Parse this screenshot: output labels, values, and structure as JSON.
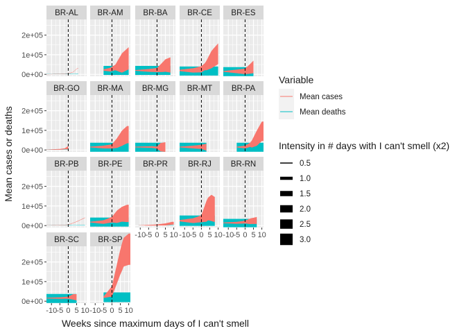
{
  "chart_data": {
    "type": "area",
    "facet_var": "state",
    "xlabel": "Weeks since maximum days of I can't smell",
    "ylabel": "Mean cases or deaths",
    "xlim": [
      -13,
      11
    ],
    "ylim": [
      -10000,
      280000
    ],
    "x_ticks": [
      -10,
      -5,
      0,
      5,
      10
    ],
    "x_tick_labels": [
      "-10",
      "-5",
      "0",
      "5",
      "10"
    ],
    "y_ticks": [
      0,
      100000,
      200000
    ],
    "y_tick_labels": [
      "0e+00",
      "1e+05",
      "2e+05"
    ],
    "vline_x": 0,
    "grid": true,
    "panel_background": "#ebebeb",
    "strip_background": "#d9d9d9",
    "legend_position": "right",
    "legend": {
      "variable_title": "Variable",
      "variable_entries": [
        {
          "label": "Mean cases",
          "color": "#F8766D"
        },
        {
          "label": "Mean deaths",
          "color": "#00BFC4"
        }
      ],
      "intensity_title": "Intensity in # days with I can't smell (x2)",
      "intensity_entries": [
        "0.5",
        "1.0",
        "1.5",
        "2.0",
        "2.5",
        "3.0"
      ]
    },
    "series_colors": {
      "cases": "#F8766D",
      "deaths": "#00BFC4"
    },
    "panels": [
      {
        "label": "BR-AL",
        "xr": [
          -13,
          6
        ],
        "cases": [
          [
            -13,
            0
          ],
          [
            -5,
            2000
          ],
          [
            0,
            4000
          ],
          [
            3,
            12000
          ],
          [
            5,
            28000
          ],
          [
            6,
            32000
          ]
        ],
        "deaths": [
          [
            -13,
            2000
          ],
          [
            -5,
            2000
          ],
          [
            0,
            2000
          ],
          [
            3,
            3000
          ],
          [
            6,
            3000
          ]
        ],
        "c_w": [
          [
            -13,
            0.2
          ],
          [
            0,
            0.5
          ],
          [
            6,
            0.5
          ]
        ],
        "d_w": [
          [
            -13,
            0.3
          ],
          [
            6,
            0.5
          ]
        ]
      },
      {
        "label": "BR-AM",
        "xr": [
          -5,
          10
        ],
        "cases": [
          [
            -5,
            22000
          ],
          [
            -1,
            24000
          ],
          [
            2,
            35000
          ],
          [
            5,
            52000
          ],
          [
            8,
            70000
          ],
          [
            10,
            82000
          ]
        ],
        "deaths": [
          [
            -5,
            20000
          ],
          [
            5,
            20000
          ],
          [
            10,
            20000
          ]
        ],
        "c_w": [
          [
            -5,
            2
          ],
          [
            2,
            8
          ],
          [
            6,
            28
          ],
          [
            10,
            32
          ]
        ],
        "d_w": [
          [
            -5,
            13
          ],
          [
            10,
            13
          ]
        ]
      },
      {
        "label": "BR-BA",
        "xr": [
          -13,
          8
        ],
        "cases": [
          [
            -13,
            20000
          ],
          [
            -5,
            20000
          ],
          [
            0,
            22000
          ],
          [
            3,
            35000
          ],
          [
            5,
            45000
          ],
          [
            8,
            48000
          ]
        ],
        "deaths": [
          [
            -13,
            20000
          ],
          [
            8,
            20000
          ]
        ],
        "c_w": [
          [
            -13,
            1
          ],
          [
            0,
            6
          ],
          [
            5,
            18
          ],
          [
            8,
            22
          ]
        ],
        "d_w": [
          [
            -13,
            13
          ],
          [
            8,
            13
          ]
        ]
      },
      {
        "label": "BR-CE",
        "xr": [
          -13,
          10
        ],
        "cases": [
          [
            -13,
            20000
          ],
          [
            -5,
            20000
          ],
          [
            0,
            26000
          ],
          [
            3,
            45000
          ],
          [
            6,
            75000
          ],
          [
            10,
            105000
          ]
        ],
        "deaths": [
          [
            -13,
            17000
          ],
          [
            10,
            17000
          ]
        ],
        "c_w": [
          [
            -13,
            2
          ],
          [
            2,
            10
          ],
          [
            6,
            25
          ],
          [
            10,
            30
          ]
        ],
        "d_w": [
          [
            -13,
            13
          ],
          [
            10,
            13
          ]
        ]
      },
      {
        "label": "BR-ES",
        "xr": [
          -13,
          5
        ],
        "cases": [
          [
            -13,
            15000
          ],
          [
            -5,
            15000
          ],
          [
            0,
            15000
          ],
          [
            3,
            28000
          ],
          [
            5,
            38000
          ]
        ],
        "deaths": [
          [
            -13,
            14000
          ],
          [
            5,
            14000
          ]
        ],
        "c_w": [
          [
            -13,
            1
          ],
          [
            0,
            8
          ],
          [
            5,
            18
          ]
        ],
        "d_w": [
          [
            -13,
            13
          ],
          [
            5,
            13
          ]
        ]
      },
      {
        "label": "BR-GO",
        "xr": [
          -13,
          0
        ],
        "cases": [
          [
            -13,
            2000
          ],
          [
            -5,
            3000
          ],
          [
            -2,
            6000
          ],
          [
            0,
            12000
          ]
        ],
        "deaths": [
          [
            -13,
            1500
          ],
          [
            0,
            2500
          ]
        ],
        "c_w": [
          [
            -13,
            0.3
          ],
          [
            -2,
            1.5
          ],
          [
            0,
            5
          ]
        ],
        "d_w": [
          [
            -13,
            0.3
          ],
          [
            0,
            0.5
          ]
        ]
      },
      {
        "label": "BR-MA",
        "xr": [
          -13,
          10
        ],
        "cases": [
          [
            -13,
            15000
          ],
          [
            -5,
            15000
          ],
          [
            0,
            18000
          ],
          [
            3,
            35000
          ],
          [
            6,
            60000
          ],
          [
            9,
            78000
          ]
        ],
        "deaths": [
          [
            -13,
            14000
          ],
          [
            9,
            14000
          ]
        ],
        "c_w": [
          [
            -13,
            1
          ],
          [
            0,
            6
          ],
          [
            6,
            22
          ],
          [
            9,
            25
          ]
        ],
        "d_w": [
          [
            -13,
            13
          ],
          [
            9,
            13
          ]
        ]
      },
      {
        "label": "BR-MG",
        "xr": [
          -13,
          5
        ],
        "cases": [
          [
            -13,
            15000
          ],
          [
            -3,
            15000
          ],
          [
            0,
            12000
          ],
          [
            2,
            14000
          ],
          [
            5,
            15000
          ]
        ],
        "deaths": [
          [
            -13,
            14000
          ],
          [
            5,
            14000
          ]
        ],
        "c_w": [
          [
            -13,
            1
          ],
          [
            0,
            3
          ],
          [
            2,
            12
          ],
          [
            5,
            14
          ]
        ],
        "d_w": [
          [
            -13,
            13
          ],
          [
            5,
            13
          ]
        ]
      },
      {
        "label": "BR-MT",
        "xr": [
          -13,
          3
        ],
        "cases": [
          [
            -13,
            15000
          ],
          [
            -3,
            15000
          ],
          [
            0,
            16000
          ],
          [
            3,
            14000
          ]
        ],
        "deaths": [
          [
            -13,
            14000
          ],
          [
            3,
            14000
          ]
        ],
        "c_w": [
          [
            -13,
            1
          ],
          [
            0,
            6
          ],
          [
            3,
            10
          ]
        ],
        "d_w": [
          [
            -13,
            13
          ],
          [
            3,
            13
          ]
        ]
      },
      {
        "label": "BR-PA",
        "xr": [
          -5,
          11
        ],
        "cases": [
          [
            -5,
            15000
          ],
          [
            0,
            15000
          ],
          [
            4,
            30000
          ],
          [
            7,
            60000
          ],
          [
            10,
            95000
          ]
        ],
        "deaths": [
          [
            -5,
            14000
          ],
          [
            10,
            14000
          ]
        ],
        "c_w": [
          [
            -5,
            1
          ],
          [
            3,
            6
          ],
          [
            7,
            22
          ],
          [
            10,
            28
          ]
        ],
        "d_w": [
          [
            -5,
            13
          ],
          [
            10,
            13
          ]
        ]
      },
      {
        "label": "BR-PB",
        "xr": [
          -13,
          10
        ],
        "cases": [
          [
            -13,
            2000
          ],
          [
            -5,
            2000
          ],
          [
            0,
            4000
          ],
          [
            5,
            20000
          ],
          [
            8,
            32000
          ],
          [
            10,
            40000
          ]
        ],
        "deaths": [
          [
            -13,
            1500
          ],
          [
            10,
            3000
          ]
        ],
        "c_w": [
          [
            -13,
            0.3
          ],
          [
            0,
            0.5
          ],
          [
            10,
            0.6
          ]
        ],
        "d_w": [
          [
            -13,
            0.3
          ],
          [
            10,
            0.5
          ]
        ]
      },
      {
        "label": "BR-PE",
        "xr": [
          -13,
          10
        ],
        "cases": [
          [
            -13,
            18000
          ],
          [
            -5,
            18000
          ],
          [
            0,
            30000
          ],
          [
            3,
            45000
          ],
          [
            6,
            58000
          ],
          [
            9,
            62000
          ]
        ],
        "deaths": [
          [
            -13,
            18000
          ],
          [
            9,
            18000
          ]
        ],
        "c_w": [
          [
            -13,
            1
          ],
          [
            0,
            8
          ],
          [
            3,
            18
          ],
          [
            9,
            25
          ]
        ],
        "d_w": [
          [
            -13,
            13
          ],
          [
            9,
            13
          ]
        ]
      },
      {
        "label": "BR-PR",
        "xr": [
          -11,
          10
        ],
        "cases": [
          [
            -11,
            1000
          ],
          [
            -5,
            2000
          ],
          [
            0,
            3000
          ],
          [
            5,
            6000
          ],
          [
            9,
            12000
          ]
        ],
        "deaths": [
          [
            -11,
            1000
          ],
          [
            9,
            1500
          ]
        ],
        "c_w": [
          [
            -11,
            0.3
          ],
          [
            0,
            1.5
          ],
          [
            5,
            3
          ],
          [
            9,
            4
          ]
        ],
        "d_w": [
          [
            -11,
            0.3
          ],
          [
            9,
            0.4
          ]
        ]
      },
      {
        "label": "BR-RJ",
        "xr": [
          -13,
          8
        ],
        "cases": [
          [
            -13,
            25000
          ],
          [
            -5,
            25000
          ],
          [
            0,
            35000
          ],
          [
            2,
            60000
          ],
          [
            4,
            85000
          ],
          [
            6,
            90000
          ],
          [
            8,
            82000
          ]
        ],
        "deaths": [
          [
            -13,
            25000
          ],
          [
            8,
            25000
          ]
        ],
        "c_w": [
          [
            -13,
            2
          ],
          [
            0,
            10
          ],
          [
            3,
            30
          ],
          [
            6,
            38
          ],
          [
            8,
            36
          ]
        ],
        "d_w": [
          [
            -13,
            15
          ],
          [
            8,
            15
          ]
        ]
      },
      {
        "label": "BR-RN",
        "xr": [
          -13,
          7
        ],
        "cases": [
          [
            -13,
            14000
          ],
          [
            -5,
            14000
          ],
          [
            0,
            18000
          ],
          [
            3,
            22000
          ],
          [
            7,
            26000
          ]
        ],
        "deaths": [
          [
            -13,
            13000
          ],
          [
            7,
            13000
          ]
        ],
        "c_w": [
          [
            -13,
            1
          ],
          [
            0,
            4
          ],
          [
            3,
            8
          ],
          [
            7,
            10
          ]
        ],
        "d_w": [
          [
            -13,
            12
          ],
          [
            7,
            12
          ]
        ]
      },
      {
        "label": "BR-SC",
        "xr": [
          -13,
          5
        ],
        "cases": [
          [
            -13,
            16000
          ],
          [
            -5,
            16000
          ],
          [
            0,
            18000
          ],
          [
            3,
            22000
          ],
          [
            5,
            20000
          ]
        ],
        "deaths": [
          [
            -13,
            14000
          ],
          [
            5,
            14000
          ]
        ],
        "c_w": [
          [
            -13,
            1
          ],
          [
            0,
            3
          ],
          [
            3,
            8
          ],
          [
            5,
            9
          ]
        ],
        "d_w": [
          [
            -13,
            13
          ],
          [
            5,
            13
          ]
        ]
      },
      {
        "label": "BR-SP",
        "xr": [
          -5,
          11
        ],
        "cases": [
          [
            -5,
            20000
          ],
          [
            0,
            50000
          ],
          [
            3,
            140000
          ],
          [
            5,
            200000
          ],
          [
            7,
            250000
          ],
          [
            10,
            265000
          ]
        ],
        "deaths": [
          [
            -5,
            20000
          ],
          [
            10,
            20000
          ]
        ],
        "c_w": [
          [
            -5,
            2
          ],
          [
            0,
            15
          ],
          [
            3,
            28
          ],
          [
            6,
            40
          ],
          [
            10,
            45
          ]
        ],
        "d_w": [
          [
            -5,
            14
          ],
          [
            10,
            14
          ]
        ]
      }
    ]
  }
}
